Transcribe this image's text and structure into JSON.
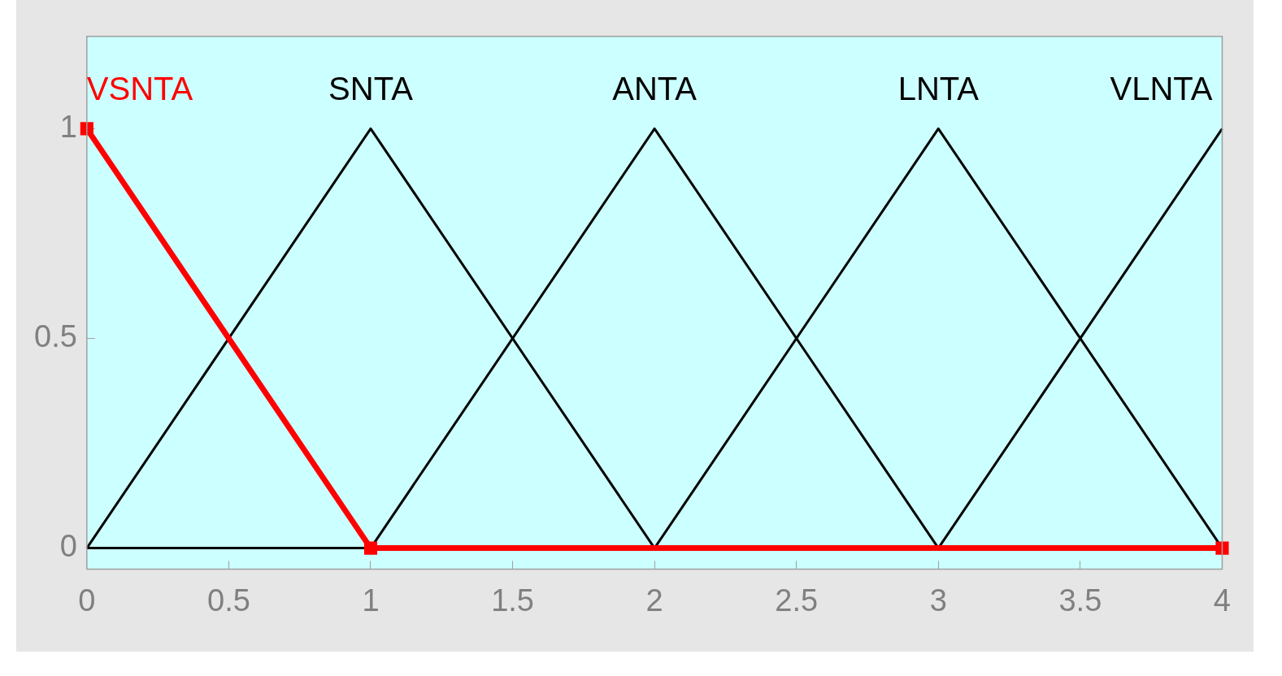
{
  "chart_data": {
    "type": "line",
    "xlim": [
      0,
      4
    ],
    "xticks": [
      0,
      0.5,
      1,
      1.5,
      2,
      2.5,
      3,
      3.5,
      4
    ],
    "ylim": [
      -0.05,
      1.22
    ],
    "yticks": [
      0,
      0.5,
      1
    ],
    "grid": false,
    "legend": false,
    "series": [
      {
        "name": "VSNTA",
        "color": "#ff0000",
        "x": [
          0,
          1,
          4
        ],
        "values": [
          1,
          0,
          0
        ],
        "marker": "square"
      },
      {
        "name": "SNTA",
        "color": "#000000",
        "x": [
          0,
          1,
          2,
          4
        ],
        "values": [
          0,
          1,
          0,
          0
        ]
      },
      {
        "name": "ANTA",
        "color": "#000000",
        "x": [
          0,
          1,
          2,
          3,
          4
        ],
        "values": [
          0,
          0,
          1,
          0,
          0
        ]
      },
      {
        "name": "LNTA",
        "color": "#000000",
        "x": [
          0,
          2,
          3,
          4
        ],
        "values": [
          0,
          0,
          1,
          0
        ]
      },
      {
        "name": "VLNTA",
        "color": "#000000",
        "x": [
          0,
          3,
          4
        ],
        "values": [
          0,
          0,
          1
        ]
      }
    ]
  }
}
